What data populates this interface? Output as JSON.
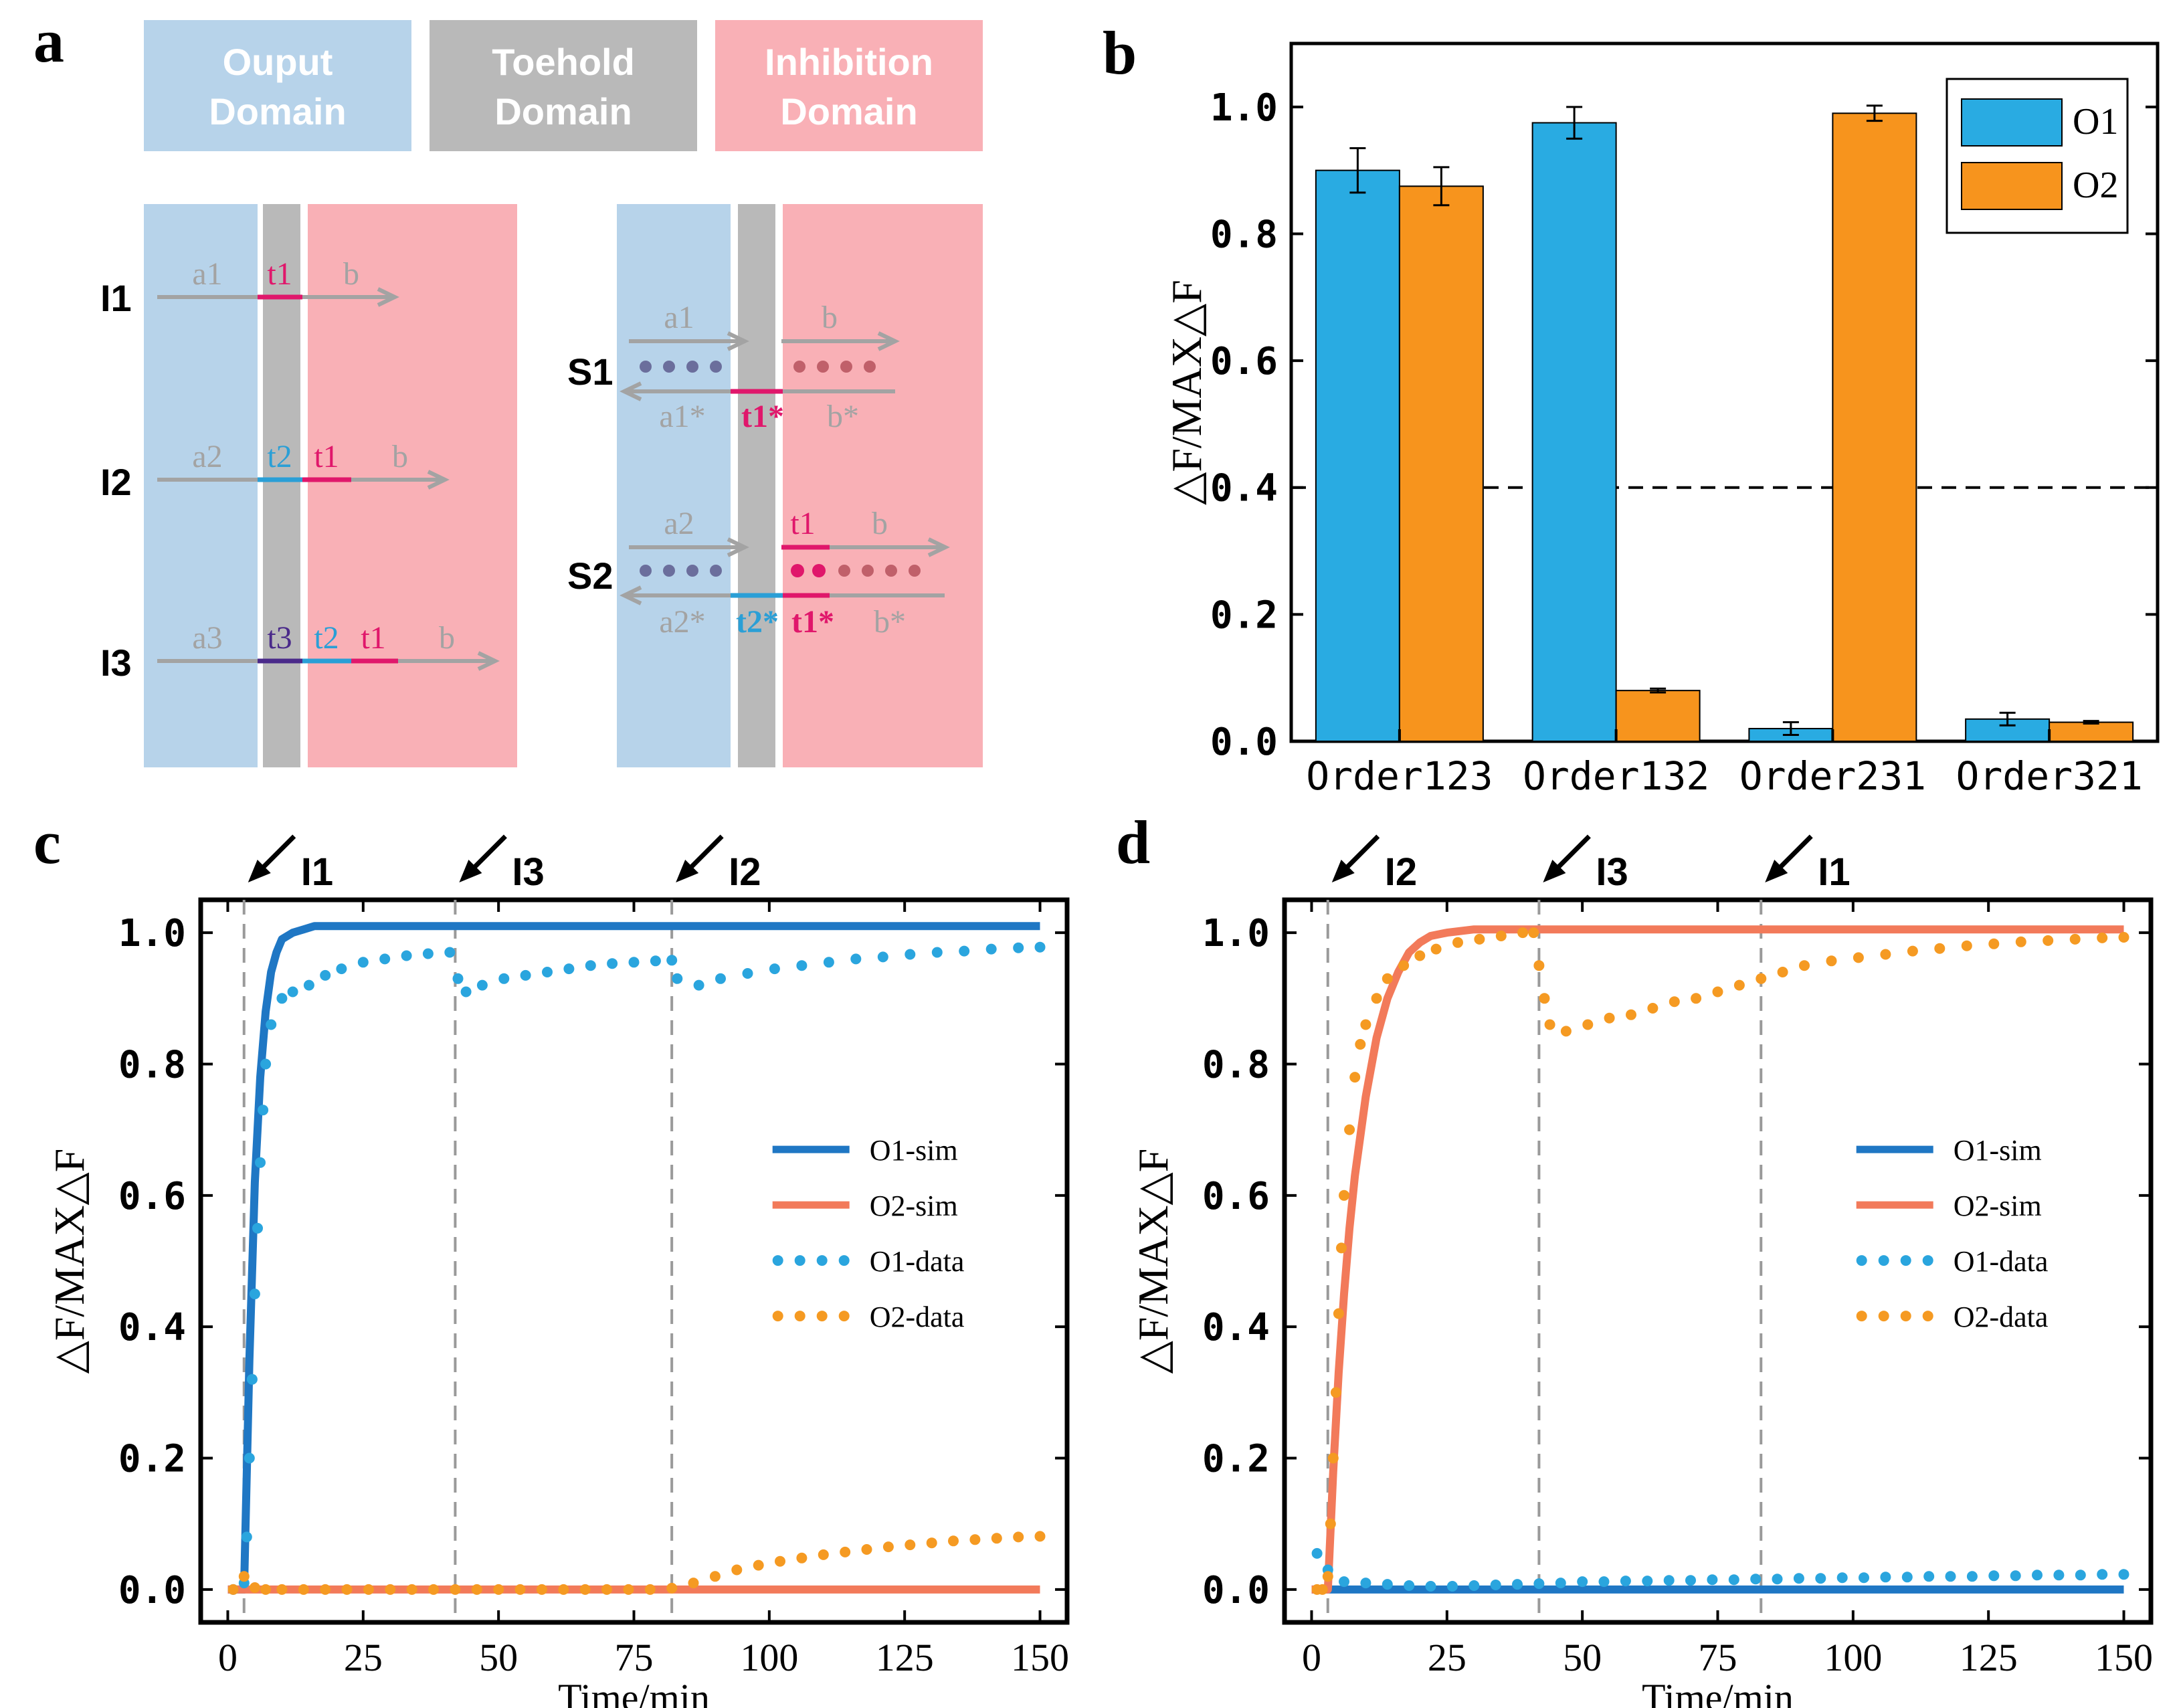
{
  "colors": {
    "output_domain": "#b7d3ea",
    "toehold_domain": "#b9b9b9",
    "inhibition_domain": "#f9b0b6",
    "strand_gray": "#a3a3a3",
    "t1": "#e0176b",
    "t2": "#2a9fd6",
    "t3": "#4a2a8a",
    "dot_blue": "#6b6e9c",
    "dot_red_faint": "#c0606a",
    "o1_bar": "#29abe2",
    "o2_bar": "#f7941d",
    "o1_sim": "#1f77c4",
    "o2_sim": "#f27a5a",
    "o1_data": "#2aa5de",
    "o2_data": "#f59a22"
  },
  "panel_labels": {
    "a": "a",
    "b": "b",
    "c": "c",
    "d": "d"
  },
  "panel_a": {
    "legend": {
      "output_line1": "Ouput",
      "output_line2": "Domain",
      "toehold_line1": "Toehold",
      "toehold_line2": "Domain",
      "inhibition_line1": "Inhibition",
      "inhibition_line2": "Domain"
    },
    "inputs": {
      "I1": {
        "name": "I1",
        "segments": [
          "a1",
          "t1",
          "b"
        ]
      },
      "I2": {
        "name": "I2",
        "segments": [
          "a2",
          "t2",
          "t1",
          "b"
        ]
      },
      "I3": {
        "name": "I3",
        "segments": [
          "a3",
          "t3",
          "t2",
          "t1",
          "b"
        ]
      }
    },
    "substrates": {
      "S1": {
        "name": "S1",
        "top": [
          "a1",
          "b"
        ],
        "bottom": [
          "a1*",
          "t1*",
          "b*"
        ]
      },
      "S2": {
        "name": "S2",
        "top": [
          "a2",
          "t1",
          "b"
        ],
        "bottom": [
          "a2*",
          "t2*",
          "t1*",
          "b*"
        ]
      }
    }
  },
  "chart_data": [
    {
      "id": "b",
      "type": "bar",
      "ylabel": "△F/MAX△F",
      "categories": [
        "Order123",
        "Order132",
        "Order231",
        "Order321"
      ],
      "series": [
        {
          "name": "O1",
          "values": [
            0.9,
            0.975,
            0.02,
            0.035
          ],
          "errors": [
            0.035,
            0.025,
            0.01,
            0.01
          ]
        },
        {
          "name": "O2",
          "values": [
            0.875,
            0.08,
            0.99,
            0.03
          ],
          "errors": [
            0.03,
            0.003,
            0.012,
            0.002
          ]
        }
      ],
      "threshold": 0.4,
      "ylim": [
        0,
        1.1
      ],
      "yticks": [
        "0.0",
        "0.2",
        "0.4",
        "0.6",
        "0.8",
        "1.0"
      ],
      "legend_position": "top-right"
    },
    {
      "id": "c",
      "type": "line",
      "xlabel": "Time/min",
      "ylabel": "△F/MAX△F",
      "xlim": [
        -5,
        155
      ],
      "ylim": [
        -0.05,
        1.05
      ],
      "xticks": [
        "0",
        "25",
        "50",
        "75",
        "100",
        "125",
        "150"
      ],
      "yticks": [
        "0.0",
        "0.2",
        "0.4",
        "0.6",
        "0.8",
        "1.0"
      ],
      "events": [
        {
          "label": "I1",
          "time": 3
        },
        {
          "label": "I3",
          "time": 42
        },
        {
          "label": "I2",
          "time": 82
        }
      ],
      "legend": [
        "O1-sim",
        "O2-sim",
        "O1-data",
        "O2-data"
      ],
      "legend_position": "center-right",
      "sim": {
        "O1-sim": {
          "x": [
            0,
            3,
            4,
            5,
            6,
            7,
            8,
            9,
            10,
            12,
            14,
            16,
            20,
            30,
            150
          ],
          "y": [
            0,
            0,
            0.35,
            0.62,
            0.78,
            0.88,
            0.94,
            0.97,
            0.99,
            1.0,
            1.005,
            1.01,
            1.01,
            1.01,
            1.01
          ]
        },
        "O2-sim": {
          "x": [
            0,
            150
          ],
          "y": [
            0,
            0
          ]
        }
      },
      "data": {
        "O1-data": {
          "x": [
            1,
            3,
            3.5,
            4,
            4.5,
            5,
            5.5,
            6,
            6.5,
            7,
            8,
            10,
            12,
            15,
            18,
            21,
            25,
            29,
            33,
            37,
            41,
            42.5,
            44,
            47,
            51,
            55,
            59,
            63,
            67,
            71,
            75,
            79,
            82,
            83,
            87,
            91,
            96,
            101,
            106,
            111,
            116,
            121,
            126,
            131,
            136,
            141,
            146,
            150
          ],
          "y": [
            0,
            0.01,
            0.08,
            0.2,
            0.32,
            0.45,
            0.55,
            0.65,
            0.73,
            0.8,
            0.86,
            0.9,
            0.91,
            0.92,
            0.935,
            0.945,
            0.955,
            0.96,
            0.965,
            0.968,
            0.97,
            0.93,
            0.91,
            0.92,
            0.93,
            0.935,
            0.94,
            0.945,
            0.95,
            0.953,
            0.955,
            0.957,
            0.958,
            0.93,
            0.92,
            0.93,
            0.938,
            0.945,
            0.95,
            0.955,
            0.96,
            0.963,
            0.967,
            0.97,
            0.972,
            0.975,
            0.977,
            0.978
          ]
        },
        "O2-data": {
          "x": [
            1,
            3,
            5,
            7,
            10,
            14,
            18,
            22,
            26,
            30,
            34,
            38,
            42,
            46,
            50,
            54,
            58,
            62,
            66,
            70,
            74,
            78,
            82,
            86,
            90,
            94,
            98,
            102,
            106,
            110,
            114,
            118,
            122,
            126,
            130,
            134,
            138,
            142,
            146,
            150
          ],
          "y": [
            0,
            0.02,
            0.003,
            0,
            0,
            0,
            0,
            0,
            0,
            0,
            0,
            0,
            0,
            0,
            0,
            0,
            0,
            0,
            0,
            0,
            0,
            0,
            0.002,
            0.01,
            0.02,
            0.03,
            0.037,
            0.043,
            0.048,
            0.053,
            0.057,
            0.061,
            0.065,
            0.068,
            0.071,
            0.074,
            0.076,
            0.078,
            0.08,
            0.081
          ]
        }
      }
    },
    {
      "id": "d",
      "type": "line",
      "xlabel": "Time/min",
      "ylabel": "△F/MAX△F",
      "xlim": [
        -5,
        155
      ],
      "ylim": [
        -0.05,
        1.05
      ],
      "xticks": [
        "0",
        "25",
        "50",
        "75",
        "100",
        "125",
        "150"
      ],
      "yticks": [
        "0.0",
        "0.2",
        "0.4",
        "0.6",
        "0.8",
        "1.0"
      ],
      "events": [
        {
          "label": "I2",
          "time": 3
        },
        {
          "label": "I3",
          "time": 42
        },
        {
          "label": "I1",
          "time": 83
        }
      ],
      "legend": [
        "O1-sim",
        "O2-sim",
        "O1-data",
        "O2-data"
      ],
      "legend_position": "center-right",
      "sim": {
        "O1-sim": {
          "x": [
            0,
            150
          ],
          "y": [
            0,
            0
          ]
        },
        "O2-sim": {
          "x": [
            0,
            3,
            4,
            5,
            6,
            7,
            8,
            10,
            12,
            14,
            16,
            18,
            20,
            22,
            25,
            30,
            40,
            150
          ],
          "y": [
            0,
            0,
            0.18,
            0.33,
            0.45,
            0.55,
            0.63,
            0.75,
            0.84,
            0.9,
            0.94,
            0.97,
            0.985,
            0.995,
            1.0,
            1.005,
            1.005,
            1.005
          ]
        },
        "O2-sim-dummy": {
          "x": [
            0
          ],
          "y": [
            0
          ]
        }
      },
      "data": {
        "O1-data": {
          "x": [
            1,
            3,
            6,
            10,
            14,
            18,
            22,
            26,
            30,
            34,
            38,
            42,
            46,
            50,
            54,
            58,
            62,
            66,
            70,
            74,
            78,
            82,
            86,
            90,
            94,
            98,
            102,
            106,
            110,
            114,
            118,
            122,
            126,
            130,
            134,
            138,
            142,
            146,
            150
          ],
          "y": [
            0.055,
            0.03,
            0.012,
            0.01,
            0.008,
            0.006,
            0.005,
            0.005,
            0.006,
            0.007,
            0.008,
            0.009,
            0.01,
            0.012,
            0.012,
            0.013,
            0.013,
            0.014,
            0.014,
            0.015,
            0.015,
            0.016,
            0.016,
            0.017,
            0.017,
            0.018,
            0.018,
            0.019,
            0.019,
            0.02,
            0.02,
            0.02,
            0.021,
            0.021,
            0.022,
            0.022,
            0.022,
            0.023,
            0.023
          ]
        },
        "O2-data": {
          "x": [
            1,
            2,
            3,
            3.5,
            4,
            4.5,
            5,
            5.5,
            6,
            7,
            8,
            9,
            10,
            12,
            14,
            17,
            20,
            23,
            27,
            31,
            35,
            39,
            41,
            42,
            43,
            44,
            47,
            51,
            55,
            59,
            63,
            67,
            71,
            75,
            79,
            83,
            87,
            91,
            96,
            101,
            106,
            111,
            116,
            121,
            126,
            131,
            136,
            141,
            146,
            150
          ],
          "y": [
            0,
            0,
            0.02,
            0.1,
            0.2,
            0.3,
            0.42,
            0.52,
            0.6,
            0.7,
            0.78,
            0.83,
            0.86,
            0.9,
            0.93,
            0.95,
            0.965,
            0.975,
            0.985,
            0.99,
            0.995,
            1.0,
            1.0,
            0.95,
            0.9,
            0.86,
            0.85,
            0.86,
            0.87,
            0.875,
            0.885,
            0.895,
            0.9,
            0.91,
            0.92,
            0.93,
            0.94,
            0.95,
            0.957,
            0.962,
            0.967,
            0.972,
            0.976,
            0.98,
            0.983,
            0.986,
            0.988,
            0.99,
            0.992,
            0.993
          ]
        }
      }
    }
  ]
}
